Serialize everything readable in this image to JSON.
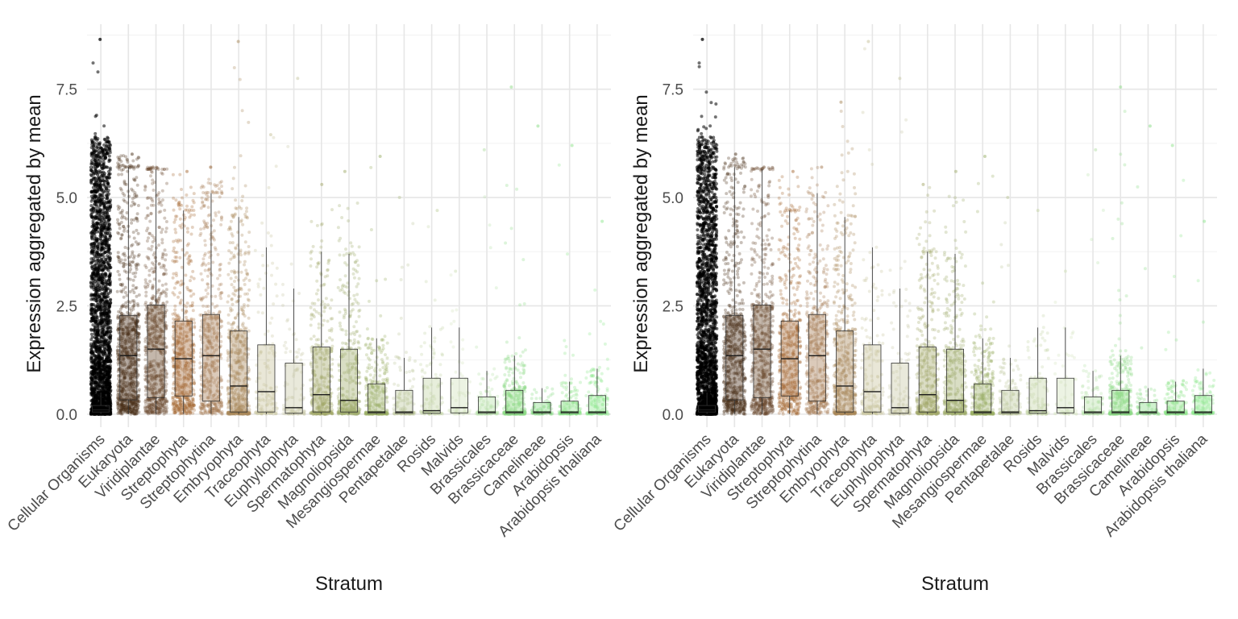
{
  "chart_data": [
    {
      "type": "box",
      "panel": "left",
      "xlabel": "Stratum",
      "ylabel": "Expression aggregated by mean",
      "ylim": [
        -0.3,
        9.0
      ],
      "yticks": [
        0.0,
        2.5,
        5.0,
        7.5
      ],
      "ytick_labels": [
        "0.0",
        "2.5",
        "5.0",
        "7.5"
      ],
      "grid": true,
      "jitter_points": true,
      "categories": [
        "Cellular Organisms",
        "Eukaryota",
        "Viridiplantae",
        "Streptophyta",
        "Streptophytina",
        "Embryophyta",
        "Traceophyta",
        "Euphyllophyta",
        "Spermatophyta",
        "Magnoliopsida",
        "Mesangiospermae",
        "Pentapetalae",
        "Rosids",
        "Malvids",
        "Brassicales",
        "Brassicaceae",
        "Camelineae",
        "Arabidopsis",
        "Arabidopsis thaliana"
      ],
      "colors": [
        "#000000",
        "#4a3018",
        "#6b4a2e",
        "#a66a36",
        "#a67a52",
        "#a8875a",
        "#c8c29a",
        "#c8c8a4",
        "#a3a86a",
        "#a0ac6c",
        "#9ab068",
        "#bcc89a",
        "#c4d4a4",
        "#cfe0b8",
        "#b6e0a8",
        "#90dc88",
        "#88dc84",
        "#90e48c",
        "#90e890"
      ],
      "boxes": [
        {
          "q1": 0.05,
          "median": 0.1,
          "q3": 0.2,
          "whisker_low": 0.0,
          "whisker_high": 0.5,
          "max": 8.65
        },
        {
          "q1": 0.33,
          "median": 1.35,
          "q3": 2.28,
          "whisker_low": 0.0,
          "whisker_high": 5.7,
          "max": 6.0
        },
        {
          "q1": 0.38,
          "median": 1.5,
          "q3": 2.52,
          "whisker_low": 0.0,
          "whisker_high": 5.65,
          "max": 5.7
        },
        {
          "q1": 0.42,
          "median": 1.28,
          "q3": 2.15,
          "whisker_low": 0.0,
          "whisker_high": 4.7,
          "max": 5.6
        },
        {
          "q1": 0.3,
          "median": 1.35,
          "q3": 2.3,
          "whisker_low": 0.0,
          "whisker_high": 5.1,
          "max": 5.7
        },
        {
          "q1": 0.05,
          "median": 0.65,
          "q3": 1.92,
          "whisker_low": 0.0,
          "whisker_high": 4.55,
          "max": 8.6
        },
        {
          "q1": 0.05,
          "median": 0.52,
          "q3": 1.6,
          "whisker_low": 0.0,
          "whisker_high": 3.85,
          "max": 6.45
        },
        {
          "q1": 0.02,
          "median": 0.15,
          "q3": 1.18,
          "whisker_low": 0.0,
          "whisker_high": 2.9,
          "max": 7.75
        },
        {
          "q1": 0.05,
          "median": 0.45,
          "q3": 1.55,
          "whisker_low": 0.0,
          "whisker_high": 3.75,
          "max": 5.3
        },
        {
          "q1": 0.05,
          "median": 0.32,
          "q3": 1.5,
          "whisker_low": 0.0,
          "whisker_high": 3.7,
          "max": 5.6
        },
        {
          "q1": 0.02,
          "median": 0.05,
          "q3": 0.7,
          "whisker_low": 0.0,
          "whisker_high": 1.75,
          "max": 5.95
        },
        {
          "q1": 0.02,
          "median": 0.05,
          "q3": 0.55,
          "whisker_low": 0.0,
          "whisker_high": 1.3,
          "max": 5.0
        },
        {
          "q1": 0.02,
          "median": 0.08,
          "q3": 0.83,
          "whisker_low": 0.0,
          "whisker_high": 2.0,
          "max": 4.7
        },
        {
          "q1": 0.03,
          "median": 0.15,
          "q3": 0.83,
          "whisker_low": 0.0,
          "whisker_high": 2.0,
          "max": 3.3
        },
        {
          "q1": 0.02,
          "median": 0.05,
          "q3": 0.4,
          "whisker_low": 0.0,
          "whisker_high": 1.0,
          "max": 6.1
        },
        {
          "q1": 0.02,
          "median": 0.05,
          "q3": 0.55,
          "whisker_low": 0.0,
          "whisker_high": 1.35,
          "max": 7.55
        },
        {
          "q1": 0.02,
          "median": 0.05,
          "q3": 0.27,
          "whisker_low": 0.0,
          "whisker_high": 0.6,
          "max": 6.65
        },
        {
          "q1": 0.02,
          "median": 0.05,
          "q3": 0.3,
          "whisker_low": 0.0,
          "whisker_high": 0.75,
          "max": 6.2
        },
        {
          "q1": 0.02,
          "median": 0.05,
          "q3": 0.43,
          "whisker_low": 0.0,
          "whisker_high": 1.05,
          "max": 4.45
        }
      ],
      "point_counts": [
        2200,
        900,
        700,
        600,
        500,
        550,
        150,
        110,
        400,
        380,
        350,
        140,
        120,
        60,
        120,
        400,
        80,
        180,
        160
      ],
      "point_opacity": 0.3
    },
    {
      "type": "box",
      "panel": "right",
      "xlabel": "Stratum",
      "ylabel": "Expression aggregated by mean",
      "ylim": [
        -0.3,
        9.0
      ],
      "yticks": [
        0.0,
        2.5,
        5.0,
        7.5
      ],
      "ytick_labels": [
        "0.0",
        "2.5",
        "5.0",
        "7.5"
      ],
      "grid": true,
      "jitter_points": true,
      "categories": [
        "Cellular Organisms",
        "Eukaryota",
        "Viridiplantae",
        "Streptophyta",
        "Streptophytina",
        "Embryophyta",
        "Traceophyta",
        "Euphyllophyta",
        "Spermatophyta",
        "Magnoliopsida",
        "Mesangiospermae",
        "Pentapetalae",
        "Rosids",
        "Malvids",
        "Brassicales",
        "Brassicaceae",
        "Camelineae",
        "Arabidopsis",
        "Arabidopsis thaliana"
      ],
      "colors": [
        "#000000",
        "#4a3018",
        "#6b4a2e",
        "#a66a36",
        "#a67a52",
        "#a8875a",
        "#c8c29a",
        "#c8c8a4",
        "#a3a86a",
        "#a0ac6c",
        "#9ab068",
        "#bcc89a",
        "#c4d4a4",
        "#cfe0b8",
        "#b6e0a8",
        "#90dc88",
        "#88dc84",
        "#90e48c",
        "#90e890"
      ],
      "boxes": [
        {
          "q1": 0.05,
          "median": 0.1,
          "q3": 0.2,
          "whisker_low": 0.0,
          "whisker_high": 0.5,
          "max": 8.65
        },
        {
          "q1": 0.33,
          "median": 1.35,
          "q3": 2.28,
          "whisker_low": 0.0,
          "whisker_high": 5.7,
          "max": 6.0
        },
        {
          "q1": 0.38,
          "median": 1.5,
          "q3": 2.52,
          "whisker_low": 0.0,
          "whisker_high": 5.65,
          "max": 5.7
        },
        {
          "q1": 0.42,
          "median": 1.28,
          "q3": 2.15,
          "whisker_low": 0.0,
          "whisker_high": 4.7,
          "max": 5.6
        },
        {
          "q1": 0.3,
          "median": 1.35,
          "q3": 2.3,
          "whisker_low": 0.0,
          "whisker_high": 5.1,
          "max": 5.7
        },
        {
          "q1": 0.05,
          "median": 0.65,
          "q3": 1.92,
          "whisker_low": 0.0,
          "whisker_high": 4.55,
          "max": 7.2
        },
        {
          "q1": 0.05,
          "median": 0.52,
          "q3": 1.6,
          "whisker_low": 0.0,
          "whisker_high": 3.85,
          "max": 8.6
        },
        {
          "q1": 0.02,
          "median": 0.15,
          "q3": 1.18,
          "whisker_low": 0.0,
          "whisker_high": 2.9,
          "max": 7.75
        },
        {
          "q1": 0.05,
          "median": 0.45,
          "q3": 1.55,
          "whisker_low": 0.0,
          "whisker_high": 3.75,
          "max": 5.3
        },
        {
          "q1": 0.05,
          "median": 0.32,
          "q3": 1.5,
          "whisker_low": 0.0,
          "whisker_high": 3.7,
          "max": 5.6
        },
        {
          "q1": 0.02,
          "median": 0.05,
          "q3": 0.7,
          "whisker_low": 0.0,
          "whisker_high": 1.75,
          "max": 5.95
        },
        {
          "q1": 0.02,
          "median": 0.05,
          "q3": 0.55,
          "whisker_low": 0.0,
          "whisker_high": 1.3,
          "max": 5.0
        },
        {
          "q1": 0.02,
          "median": 0.08,
          "q3": 0.83,
          "whisker_low": 0.0,
          "whisker_high": 2.0,
          "max": 4.7
        },
        {
          "q1": 0.03,
          "median": 0.15,
          "q3": 0.83,
          "whisker_low": 0.0,
          "whisker_high": 2.0,
          "max": 3.3
        },
        {
          "q1": 0.02,
          "median": 0.05,
          "q3": 0.4,
          "whisker_low": 0.0,
          "whisker_high": 1.0,
          "max": 6.1
        },
        {
          "q1": 0.02,
          "median": 0.05,
          "q3": 0.55,
          "whisker_low": 0.0,
          "whisker_high": 1.35,
          "max": 7.55
        },
        {
          "q1": 0.02,
          "median": 0.05,
          "q3": 0.27,
          "whisker_low": 0.0,
          "whisker_high": 0.6,
          "max": 6.65
        },
        {
          "q1": 0.02,
          "median": 0.05,
          "q3": 0.3,
          "whisker_low": 0.0,
          "whisker_high": 0.75,
          "max": 6.2
        },
        {
          "q1": 0.02,
          "median": 0.05,
          "q3": 0.43,
          "whisker_low": 0.0,
          "whisker_high": 1.05,
          "max": 4.45
        }
      ],
      "point_counts": [
        2200,
        700,
        600,
        500,
        450,
        550,
        180,
        120,
        420,
        400,
        380,
        150,
        120,
        60,
        120,
        420,
        80,
        180,
        160
      ],
      "point_opacity": 0.3
    }
  ]
}
